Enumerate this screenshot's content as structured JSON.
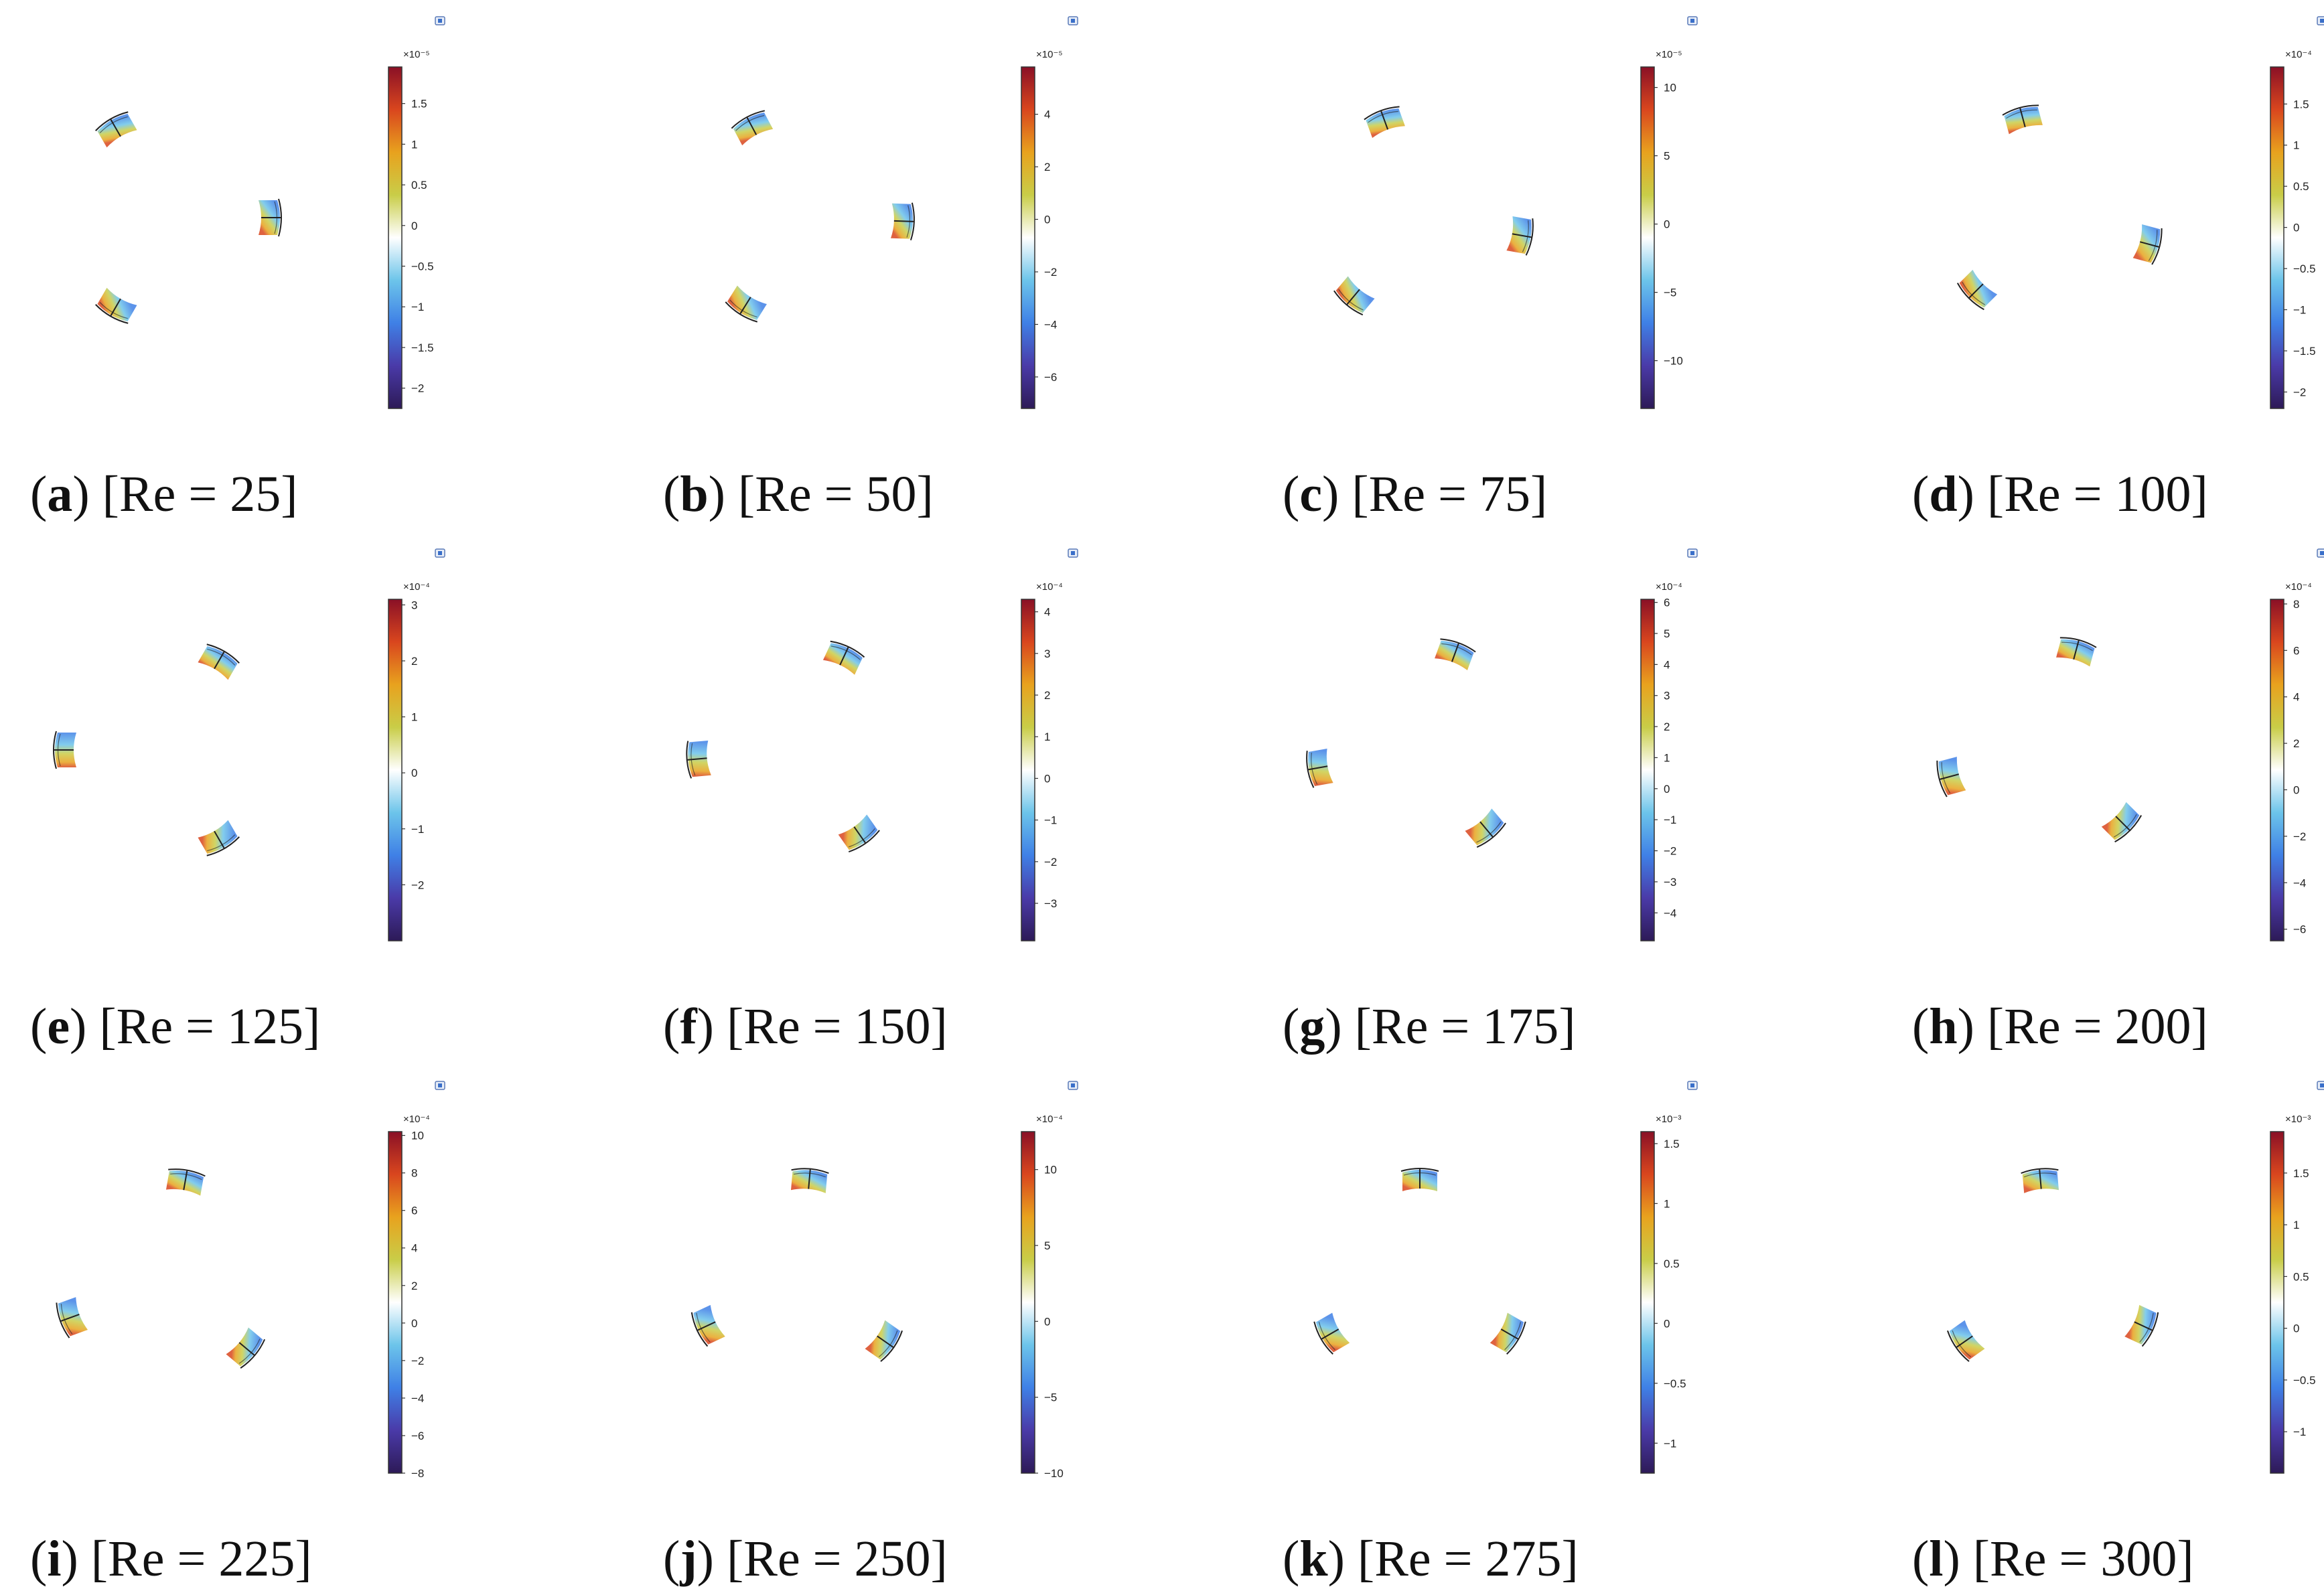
{
  "colormap": [
    "#2d1a57",
    "#4a3aa8",
    "#3f80e6",
    "#6cc4ea",
    "#ffffff",
    "#c9cd48",
    "#e8a21e",
    "#d9461e",
    "#8a1026"
  ],
  "blade_stroke": "#222222",
  "panels": [
    {
      "letter": "a",
      "label": "[Re = 25]",
      "exponent_label": "×10⁻⁵",
      "ticks": [
        "1.5",
        "1",
        "0.5",
        "0",
        "−0.5",
        "−1",
        "−1.5",
        "−2"
      ],
      "tick_values": [
        1.5,
        1,
        0.5,
        0,
        -0.5,
        -1,
        -1.5,
        -2
      ],
      "range": [
        -2.25,
        1.95
      ],
      "blade_angles": [
        120,
        0,
        240
      ]
    },
    {
      "letter": "b",
      "label": "[Re = 50]",
      "exponent_label": "×10⁻⁵",
      "ticks": [
        "4",
        "2",
        "0",
        "−2",
        "−4",
        "−6"
      ],
      "tick_values": [
        4,
        2,
        0,
        -2,
        -4,
        -6
      ],
      "range": [
        -7.2,
        5.8
      ],
      "blade_angles": [
        118,
        358,
        238
      ]
    },
    {
      "letter": "c",
      "label": "[Re = 75]",
      "exponent_label": "×10⁻⁵",
      "ticks": [
        "10",
        "5",
        "0",
        "−5",
        "−10"
      ],
      "tick_values": [
        10,
        5,
        0,
        -5,
        -10
      ],
      "range": [
        -13.5,
        11.5
      ],
      "blade_angles": [
        110,
        350,
        230
      ]
    },
    {
      "letter": "d",
      "label": "[Re = 100]",
      "exponent_label": "×10⁻⁴",
      "ticks": [
        "1.5",
        "1",
        "0.5",
        "0",
        "−0.5",
        "−1",
        "−1.5",
        "−2"
      ],
      "tick_values": [
        1.5,
        1,
        0.5,
        0,
        -0.5,
        -1,
        -1.5,
        -2
      ],
      "range": [
        -2.2,
        1.95
      ],
      "blade_angles": [
        105,
        345,
        225
      ]
    },
    {
      "letter": "e",
      "label": "[Re = 125]",
      "exponent_label": "×10⁻⁴",
      "ticks": [
        "3",
        "2",
        "1",
        "0",
        "−1",
        "−2"
      ],
      "tick_values": [
        3,
        2,
        1,
        0,
        -1,
        -2
      ],
      "range": [
        -3,
        3.1
      ],
      "blade_angles": [
        180,
        60,
        300
      ]
    },
    {
      "letter": "f",
      "label": "[Re = 150]",
      "exponent_label": "×10⁻⁴",
      "ticks": [
        "4",
        "3",
        "2",
        "1",
        "0",
        "−1",
        "−2",
        "−3"
      ],
      "tick_values": [
        4,
        3,
        2,
        1,
        0,
        -1,
        -2,
        -3
      ],
      "range": [
        -3.9,
        4.3
      ],
      "blade_angles": [
        185,
        65,
        305
      ]
    },
    {
      "letter": "g",
      "label": "[Re = 175]",
      "exponent_label": "×10⁻⁴",
      "ticks": [
        "6",
        "5",
        "4",
        "3",
        "2",
        "1",
        "0",
        "−1",
        "−2",
        "−3",
        "−4"
      ],
      "tick_values": [
        6,
        5,
        4,
        3,
        2,
        1,
        0,
        -1,
        -2,
        -3,
        -4
      ],
      "range": [
        -4.9,
        6.1
      ],
      "blade_angles": [
        190,
        70,
        310
      ]
    },
    {
      "letter": "h",
      "label": "[Re = 200]",
      "exponent_label": "×10⁻⁴",
      "ticks": [
        "8",
        "6",
        "4",
        "2",
        "0",
        "−2",
        "−4",
        "−6"
      ],
      "tick_values": [
        8,
        6,
        4,
        2,
        0,
        -2,
        -4,
        -6
      ],
      "range": [
        -6.5,
        8.2
      ],
      "blade_angles": [
        195,
        75,
        315
      ]
    },
    {
      "letter": "i",
      "label": "[Re = 225]",
      "exponent_label": "×10⁻⁴",
      "ticks": [
        "10",
        "8",
        "6",
        "4",
        "2",
        "0",
        "−2",
        "−4",
        "−6",
        "−8"
      ],
      "tick_values": [
        10,
        8,
        6,
        4,
        2,
        0,
        -2,
        -4,
        -6,
        -8
      ],
      "range": [
        -8,
        10.2
      ],
      "blade_angles": [
        200,
        80,
        320
      ]
    },
    {
      "letter": "j",
      "label": "[Re = 250]",
      "exponent_label": "×10⁻⁴",
      "ticks": [
        "10",
        "5",
        "0",
        "−5",
        "−10"
      ],
      "tick_values": [
        10,
        5,
        0,
        -5,
        -10
      ],
      "range": [
        -10,
        12.5
      ],
      "blade_angles": [
        205,
        85,
        325
      ]
    },
    {
      "letter": "k",
      "label": "[Re = 275]",
      "exponent_label": "×10⁻³",
      "ticks": [
        "1.5",
        "1",
        "0.5",
        "0",
        "−0.5",
        "−1"
      ],
      "tick_values": [
        1.5,
        1,
        0.5,
        0,
        -0.5,
        -1
      ],
      "range": [
        -1.25,
        1.6
      ],
      "blade_angles": [
        210,
        90,
        330
      ]
    },
    {
      "letter": "l",
      "label": "[Re = 300]",
      "exponent_label": "×10⁻³",
      "ticks": [
        "1.5",
        "1",
        "0.5",
        "0",
        "−0.5",
        "−1"
      ],
      "tick_values": [
        1.5,
        1,
        0.5,
        0,
        -0.5,
        -1
      ],
      "range": [
        -1.4,
        1.9
      ],
      "blade_angles": [
        215,
        95,
        335
      ]
    }
  ]
}
